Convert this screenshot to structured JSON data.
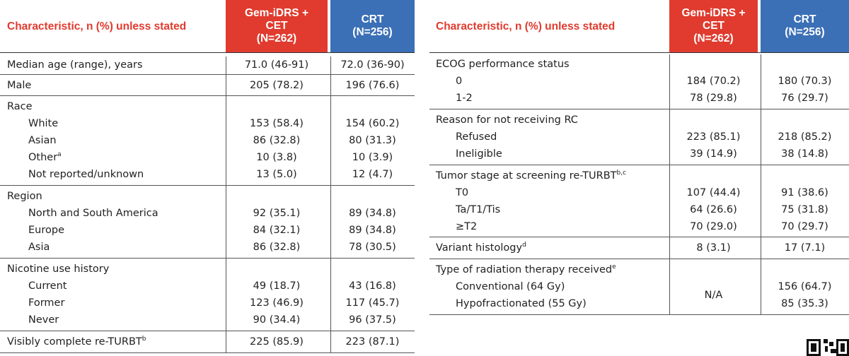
{
  "left": {
    "header": {
      "characteristic": "Characteristic, n (%) unless stated",
      "arm1": [
        "Gem-iDRS +",
        "CET",
        "(N=262)"
      ],
      "arm2": [
        "CRT",
        "(N=256)"
      ]
    },
    "sections": [
      {
        "rows": [
          {
            "label": "Median age (range), years",
            "indent": false,
            "v1": "71.0 (46-91)",
            "v2": "72.0 (36-90)"
          }
        ]
      },
      {
        "rows": [
          {
            "label": "Male",
            "indent": false,
            "v1": "205 (78.2)",
            "v2": "196 (76.6)"
          }
        ]
      },
      {
        "rows": [
          {
            "label": "Race",
            "indent": false,
            "v1": "",
            "v2": ""
          },
          {
            "label": "White",
            "indent": true,
            "v1": "153 (58.4)",
            "v2": "154 (60.2)"
          },
          {
            "label": "Asian",
            "indent": true,
            "v1": "86 (32.8)",
            "v2": "80 (31.3)"
          },
          {
            "label": "Other",
            "sup": "a",
            "indent": true,
            "v1": "10 (3.8)",
            "v2": "10 (3.9)"
          },
          {
            "label": "Not reported/unknown",
            "indent": true,
            "v1": "13 (5.0)",
            "v2": "12 (4.7)"
          }
        ]
      },
      {
        "rows": [
          {
            "label": "Region",
            "indent": false,
            "v1": "",
            "v2": ""
          },
          {
            "label": "North and South America",
            "indent": true,
            "v1": "92 (35.1)",
            "v2": "89 (34.8)"
          },
          {
            "label": "Europe",
            "indent": true,
            "v1": "84 (32.1)",
            "v2": "89 (34.8)"
          },
          {
            "label": "Asia",
            "indent": true,
            "v1": "86 (32.8)",
            "v2": "78 (30.5)"
          }
        ]
      },
      {
        "rows": [
          {
            "label": "Nicotine use history",
            "indent": false,
            "v1": "",
            "v2": ""
          },
          {
            "label": "Current",
            "indent": true,
            "v1": "49 (18.7)",
            "v2": "43 (16.8)"
          },
          {
            "label": "Former",
            "indent": true,
            "v1": "123 (46.9)",
            "v2": "117 (45.7)"
          },
          {
            "label": "Never",
            "indent": true,
            "v1": "90 (34.4)",
            "v2": "96 (37.5)"
          }
        ]
      },
      {
        "rows": [
          {
            "label": "Visibly complete re-TURBT",
            "sup": "b",
            "indent": false,
            "v1": "225 (85.9)",
            "v2": "223 (87.1)"
          }
        ]
      }
    ]
  },
  "right": {
    "header": {
      "characteristic": "Characteristic, n (%) unless stated",
      "arm1": [
        "Gem-iDRS +",
        "CET",
        "(N=262)"
      ],
      "arm2": [
        "CRT",
        "(N=256)"
      ]
    },
    "sections": [
      {
        "rows": [
          {
            "label": "ECOG performance status",
            "indent": false,
            "v1": "",
            "v2": ""
          },
          {
            "label": "0",
            "indent": true,
            "v1": "184 (70.2)",
            "v2": "180 (70.3)"
          },
          {
            "label": "1-2",
            "indent": true,
            "v1": "78 (29.8)",
            "v2": "76 (29.7)"
          }
        ]
      },
      {
        "rows": [
          {
            "label": "Reason for not receiving RC",
            "indent": false,
            "v1": "",
            "v2": ""
          },
          {
            "label": "Refused",
            "indent": true,
            "v1": "223 (85.1)",
            "v2": "218 (85.2)"
          },
          {
            "label": "Ineligible",
            "indent": true,
            "v1": "39 (14.9)",
            "v2": "38 (14.8)"
          }
        ]
      },
      {
        "rows": [
          {
            "label": "Tumor stage at screening re-TURBT",
            "sup": "b,c",
            "indent": false,
            "v1": "",
            "v2": ""
          },
          {
            "label": "T0",
            "indent": true,
            "v1": "107 (44.4)",
            "v2": "91 (38.6)"
          },
          {
            "label": "Ta/T1/Tis",
            "indent": true,
            "v1": "64 (26.6)",
            "v2": "75 (31.8)"
          },
          {
            "label": "≥T2",
            "indent": true,
            "v1": "70 (29.0)",
            "v2": "70 (29.7)"
          }
        ]
      },
      {
        "rows": [
          {
            "label": "Variant histology",
            "sup": "d",
            "indent": false,
            "v1": "8 (3.1)",
            "v2": "17 (7.1)"
          }
        ]
      },
      {
        "rows": [
          {
            "label": "Type of radiation therapy received",
            "sup": "e",
            "indent": false,
            "v1": "",
            "v2": ""
          },
          {
            "label": "Conventional (64 Gy)",
            "indent": true,
            "v1": "N/A",
            "v2": "156 (64.7)"
          },
          {
            "label": "Hypofractionated (55 Gy)",
            "indent": true,
            "v1": "",
            "v2": "85 (35.3)"
          }
        ]
      }
    ]
  }
}
